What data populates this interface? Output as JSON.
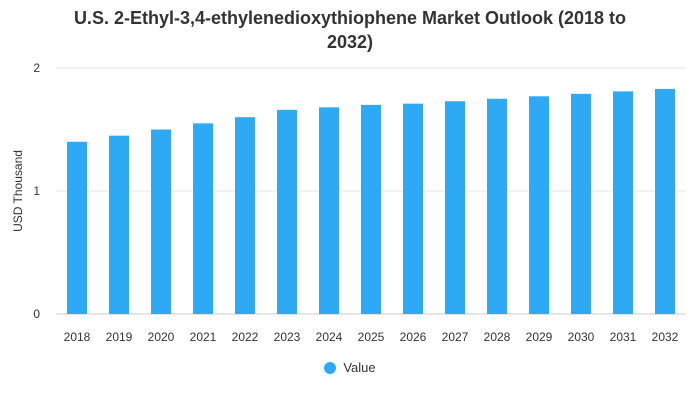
{
  "chart_data": {
    "type": "bar",
    "title_lines": [
      "U.S. 2-Ethyl-3,4-ethylenedioxythiophene Market Outlook (2018 to",
      "2032)"
    ],
    "xlabel": "",
    "ylabel": "USD Thousand",
    "ylim": [
      0,
      2
    ],
    "yticks": [
      "0",
      "1",
      "2"
    ],
    "grid": true,
    "legend_position": "bottom-center",
    "categories": [
      "2018",
      "2019",
      "2020",
      "2021",
      "2022",
      "2023",
      "2024",
      "2025",
      "2026",
      "2027",
      "2028",
      "2029",
      "2030",
      "2031",
      "2032"
    ],
    "series": [
      {
        "name": "Value",
        "color": "#2eaaf5",
        "values": [
          1.4,
          1.45,
          1.5,
          1.55,
          1.6,
          1.66,
          1.68,
          1.7,
          1.71,
          1.73,
          1.75,
          1.77,
          1.79,
          1.81,
          1.83
        ]
      }
    ]
  }
}
